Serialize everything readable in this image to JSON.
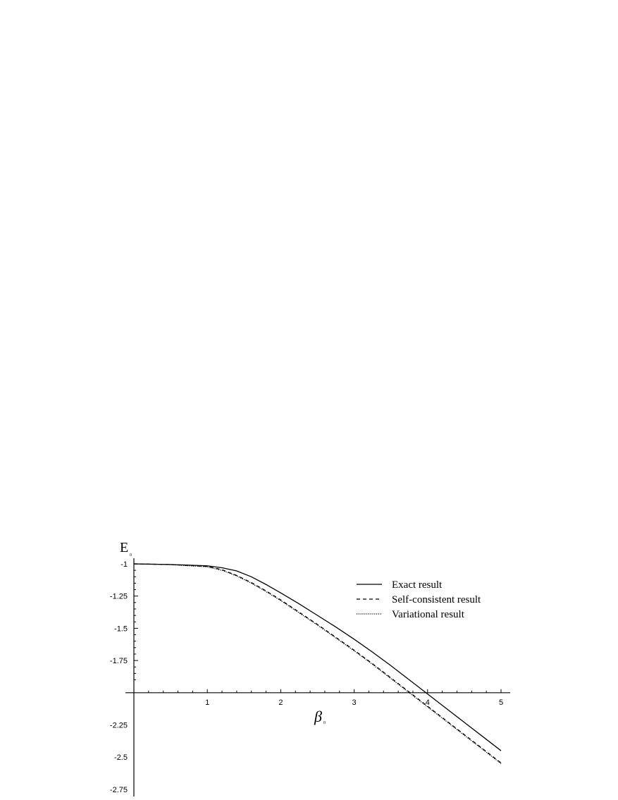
{
  "chart_data": {
    "type": "line",
    "ylabel": "E",
    "ylabel_subscript": "0",
    "xlabel": "β",
    "xlabel_subscript": "0",
    "xlim": [
      0,
      5.1
    ],
    "ylim": [
      -2.8,
      -0.95
    ],
    "axis_cross_y": -2,
    "x_ticks": [
      1,
      2,
      3,
      4,
      5
    ],
    "x_tick_labels": [
      "1",
      "2",
      "3",
      "4",
      "5"
    ],
    "y_ticks": [
      -1,
      -1.25,
      -1.5,
      -1.75,
      -2.25,
      -2.5,
      -2.75
    ],
    "y_tick_labels": [
      "-1",
      "-1.25",
      "-1.5",
      "-1.75",
      "-2.25",
      "-2.5",
      "-2.75"
    ],
    "grid": false,
    "legend_position": "top-right",
    "series": [
      {
        "name": "Exact result",
        "style": "solid",
        "x": [
          0,
          0.5,
          1.0,
          1.2,
          1.4,
          1.6,
          1.8,
          2.0,
          2.25,
          2.5,
          2.75,
          3.0,
          3.25,
          3.5,
          3.75,
          3.83,
          4.0,
          4.25,
          4.5,
          4.75,
          5.0
        ],
        "y": [
          -1.0,
          -1.005,
          -1.015,
          -1.03,
          -1.055,
          -1.1,
          -1.16,
          -1.225,
          -1.31,
          -1.4,
          -1.49,
          -1.585,
          -1.685,
          -1.79,
          -1.9,
          -1.935,
          -2.01,
          -2.12,
          -2.23,
          -2.34,
          -2.45
        ]
      },
      {
        "name": "Self-consistent result",
        "style": "dashed",
        "x": [
          0,
          0.5,
          1.0,
          1.2,
          1.4,
          1.6,
          1.8,
          2.0,
          2.25,
          2.5,
          2.75,
          3.0,
          3.25,
          3.5,
          3.75,
          4.0,
          4.25,
          4.5,
          4.75,
          5.0
        ],
        "y": [
          -1.0,
          -1.005,
          -1.02,
          -1.045,
          -1.09,
          -1.145,
          -1.21,
          -1.28,
          -1.375,
          -1.47,
          -1.57,
          -1.67,
          -1.775,
          -1.885,
          -1.995,
          -2.105,
          -2.215,
          -2.325,
          -2.435,
          -2.545
        ]
      },
      {
        "name": "Variational result",
        "style": "dotted",
        "x": [
          0,
          0.5,
          1.0,
          1.2,
          1.4,
          1.6,
          1.8,
          2.0,
          2.25,
          2.5,
          2.75,
          3.0,
          3.25,
          3.5,
          3.75,
          4.0,
          4.25,
          4.5,
          4.75,
          5.0
        ],
        "y": [
          -1.0,
          -1.006,
          -1.023,
          -1.05,
          -1.094,
          -1.15,
          -1.215,
          -1.285,
          -1.38,
          -1.475,
          -1.575,
          -1.675,
          -1.78,
          -1.89,
          -2.0,
          -2.11,
          -2.22,
          -2.33,
          -2.44,
          -2.55
        ]
      }
    ]
  }
}
